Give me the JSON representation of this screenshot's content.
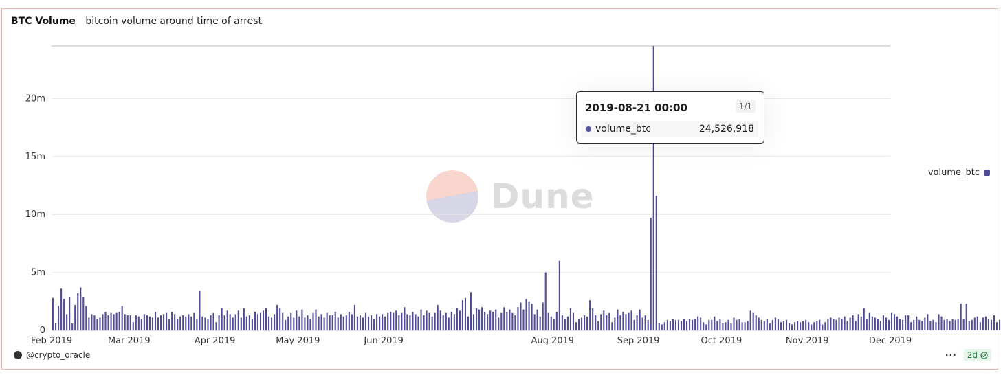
{
  "header": {
    "title": "BTC Volume",
    "subtitle": "bitcoin volume around time of arrest"
  },
  "tooltip": {
    "date": "2019-08-21 00:00",
    "page": "1/1",
    "series": "volume_btc",
    "value": "24,526,918"
  },
  "watermark": {
    "text": "Dune"
  },
  "footer": {
    "user": "@crypto_oracle",
    "badge": "2d",
    "more": "···"
  },
  "colors": {
    "bar": "#4e4b97",
    "grid": "#e6e6e6",
    "accent_logo_top": "#f8d5cd",
    "accent_logo_bottom": "#d7d6e6"
  },
  "chart_data": {
    "type": "bar",
    "title": "BTC Volume",
    "subtitle": "bitcoin volume around time of arrest",
    "ylim": [
      0,
      24526918
    ],
    "y_ticks": [
      0,
      5000000,
      10000000,
      15000000,
      20000000
    ],
    "y_tick_labels": [
      "0",
      "5m",
      "10m",
      "15m",
      "20m"
    ],
    "x_ticks": [
      "2019-02-01",
      "2019-03-01",
      "2019-04-01",
      "2019-05-01",
      "2019-06-01",
      "2019-07-01",
      "2019-08-01",
      "2019-09-01",
      "2019-10-01",
      "2019-11-01",
      "2019-12-01"
    ],
    "x_tick_labels": [
      "Feb 2019",
      "Mar 2019",
      "Apr 2019",
      "May 2019",
      "Jun 2019",
      "",
      "Aug 2019",
      "Sep 2019",
      "Oct 2019",
      "Nov 2019",
      "Dec 2019"
    ],
    "x_start": "2019-02-01",
    "legend": {
      "position": "right",
      "entries": [
        "volume_btc"
      ]
    },
    "series": [
      {
        "name": "volume_btc",
        "values": [
          2800000,
          600000,
          2100000,
          3600000,
          2700000,
          1400000,
          2900000,
          600000,
          2200000,
          3200000,
          3700000,
          2900000,
          2100000,
          1100000,
          1400000,
          1300000,
          1000000,
          1100000,
          1400000,
          1600000,
          1300000,
          1500000,
          1400000,
          1500000,
          1600000,
          2100000,
          1400000,
          1300000,
          1300000,
          700000,
          1300000,
          1200000,
          1000000,
          1400000,
          1300000,
          1200000,
          1100000,
          1600000,
          1100000,
          1300000,
          1400000,
          1500000,
          1000000,
          1600000,
          1400000,
          1000000,
          1200000,
          1300000,
          1200000,
          1400000,
          1200000,
          1500000,
          1000000,
          3400000,
          1200000,
          1100000,
          1000000,
          1300000,
          1500000,
          700000,
          1300000,
          1900000,
          1300000,
          1700000,
          1400000,
          1100000,
          1400000,
          1700000,
          1100000,
          1900000,
          1200000,
          1300000,
          1000000,
          1600000,
          1400000,
          1500000,
          1700000,
          1900000,
          1200000,
          1100000,
          1400000,
          2200000,
          1900000,
          1500000,
          900000,
          1200000,
          1500000,
          1100000,
          1700000,
          1200000,
          1800000,
          1100000,
          1300000,
          1000000,
          1500000,
          1800000,
          1200000,
          1400000,
          1100000,
          1500000,
          1300000,
          1300000,
          1600000,
          1100000,
          1400000,
          1200000,
          1300000,
          1600000,
          1400000,
          2200000,
          1200000,
          1300000,
          1100000,
          1500000,
          1200000,
          1300000,
          1000000,
          1400000,
          1200000,
          1400000,
          1200000,
          1500000,
          1600000,
          1500000,
          1700000,
          1300000,
          1500000,
          2000000,
          1400000,
          1300000,
          1600000,
          1400000,
          1200000,
          1800000,
          1300000,
          1700000,
          1500000,
          1200000,
          1500000,
          2200000,
          1700000,
          1300000,
          1500000,
          1100000,
          1600000,
          1400000,
          1900000,
          1700000,
          2600000,
          2800000,
          1200000,
          3300000,
          1400000,
          1900000,
          1800000,
          2000000,
          1600000,
          1400000,
          1700000,
          1600000,
          1800000,
          1100000,
          1500000,
          2000000,
          1600000,
          1800000,
          1500000,
          1300000,
          2000000,
          2400000,
          1800000,
          2700000,
          2500000,
          2300000,
          1400000,
          1800000,
          1200000,
          2400000,
          5000000,
          1500000,
          1200000,
          1000000,
          1600000,
          6000000,
          1300000,
          1000000,
          1200000,
          1900000,
          1500000,
          700000,
          1000000,
          1100000,
          1300000,
          1200000,
          2600000,
          1900000,
          1300000,
          800000,
          1400000,
          1700000,
          1300000,
          1500000,
          700000,
          1100000,
          1800000,
          1300000,
          1600000,
          1400000,
          1500000,
          1700000,
          900000,
          1300000,
          1800000,
          1100000,
          1300000,
          900000,
          9700000,
          24526918,
          11600000,
          600000,
          500000,
          700000,
          900000,
          800000,
          1000000,
          900000,
          900000,
          800000,
          1000000,
          800000,
          1000000,
          900000,
          1000000,
          1200000,
          1100000,
          700000,
          500000,
          900000,
          900000,
          1200000,
          800000,
          1000000,
          600000,
          700000,
          900000,
          600000,
          1100000,
          900000,
          1000000,
          700000,
          700000,
          800000,
          1700000,
          1500000,
          1300000,
          1100000,
          900000,
          800000,
          1000000,
          600000,
          900000,
          1100000,
          1000000,
          700000,
          800000,
          900000,
          600000,
          500000,
          700000,
          800000,
          700000,
          800000,
          900000,
          700000,
          500000,
          700000,
          800000,
          900000,
          500000,
          700000,
          1000000,
          1100000,
          1000000,
          900000,
          1100000,
          1000000,
          1200000,
          800000,
          1100000,
          1300000,
          800000,
          1400000,
          1200000,
          1900000,
          1000000,
          1500000,
          1200000,
          1100000,
          1000000,
          800000,
          1300000,
          1100000,
          900000,
          1500000,
          1400000,
          1200000,
          1000000,
          900000,
          1300000,
          1300000,
          700000,
          900000,
          1200000,
          900000,
          800000,
          1100000,
          1400000,
          800000,
          900000,
          700000,
          1400000,
          1200000,
          900000,
          1000000,
          800000,
          1000000,
          900000,
          1000000,
          2300000,
          1000000,
          2300000,
          800000,
          900000,
          1100000,
          1200000,
          700000,
          1100000,
          1200000,
          1000000,
          900000,
          1300000,
          700000,
          900000,
          800000,
          1800000,
          900000,
          1100000,
          1000000,
          700000,
          900000,
          800000,
          600000,
          900000,
          700000,
          800000,
          800000,
          900000,
          600000,
          900000,
          800000,
          1000000,
          700000
        ]
      }
    ]
  }
}
